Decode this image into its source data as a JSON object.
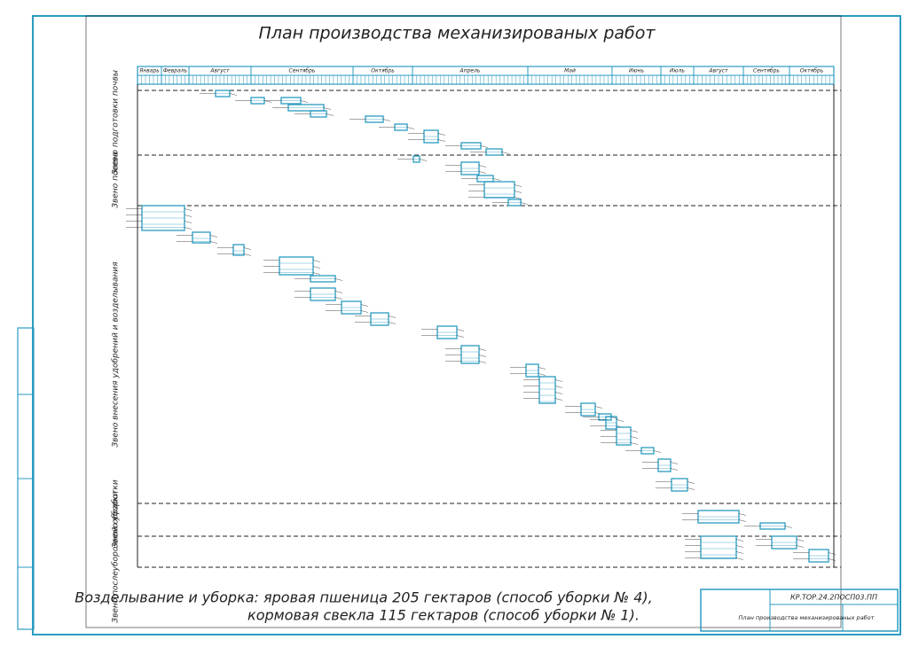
{
  "title": "План производства механизированых работ",
  "months": [
    "Январь",
    "Февраль",
    "Август",
    "Сентябрь",
    "Октябрь",
    "Апрель",
    "Май",
    "Июнь",
    "Июль",
    "Август",
    "Сентябрь",
    "Октябрь"
  ],
  "sections": [
    "Звено подготовки почвы",
    "Звено посева",
    "Звено внесения удобрений и возделывания",
    "Звено уборки",
    "Звено послеуборочной обработки"
  ],
  "caption": [
    "Возделывание и уборка: яровая пшеница 205 гектаров (способ уборки № 4),",
    "кормовая свекла 115 гектаров (способ уборки № 1)."
  ],
  "stamp": {
    "code": "КР.ТОР.24.2ПОСП03.ПП",
    "name": "План производства механизированых работ"
  }
}
